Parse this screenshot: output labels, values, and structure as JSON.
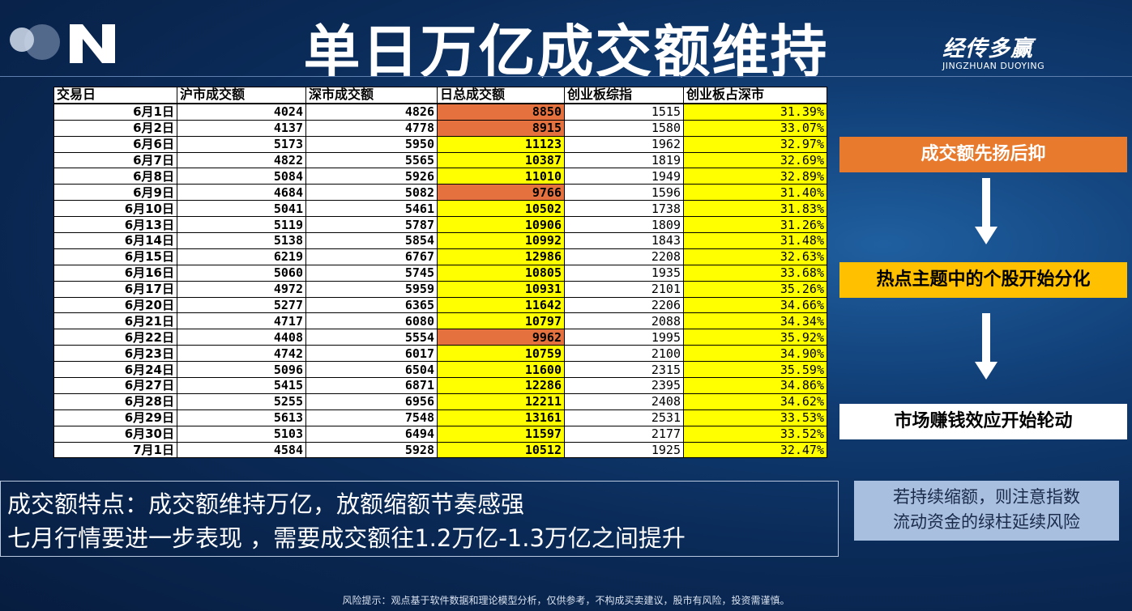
{
  "title": "单日万亿成交额维持",
  "brand": {
    "name": "经传多赢",
    "subtitle": "JINGZHUAN DUOYING"
  },
  "table": {
    "headers": [
      "交易日",
      "沪市成交额",
      "深市成交额",
      "日总成交额",
      "创业板综指",
      "创业板占深市"
    ],
    "rows": [
      {
        "date": "6月1日",
        "sh": "4024",
        "sz": "4826",
        "total": "8850",
        "gem": "1515",
        "pct": "31.39%",
        "hl": "orange"
      },
      {
        "date": "6月2日",
        "sh": "4137",
        "sz": "4778",
        "total": "8915",
        "gem": "1580",
        "pct": "33.07%",
        "hl": "orange"
      },
      {
        "date": "6月6日",
        "sh": "5173",
        "sz": "5950",
        "total": "11123",
        "gem": "1962",
        "pct": "32.97%",
        "hl": "yellow"
      },
      {
        "date": "6月7日",
        "sh": "4822",
        "sz": "5565",
        "total": "10387",
        "gem": "1819",
        "pct": "32.69%",
        "hl": "yellow"
      },
      {
        "date": "6月8日",
        "sh": "5084",
        "sz": "5926",
        "total": "11010",
        "gem": "1949",
        "pct": "32.89%",
        "hl": "yellow"
      },
      {
        "date": "6月9日",
        "sh": "4684",
        "sz": "5082",
        "total": "9766",
        "gem": "1596",
        "pct": "31.40%",
        "hl": "orange"
      },
      {
        "date": "6月10日",
        "sh": "5041",
        "sz": "5461",
        "total": "10502",
        "gem": "1738",
        "pct": "31.83%",
        "hl": "yellow"
      },
      {
        "date": "6月13日",
        "sh": "5119",
        "sz": "5787",
        "total": "10906",
        "gem": "1809",
        "pct": "31.26%",
        "hl": "yellow"
      },
      {
        "date": "6月14日",
        "sh": "5138",
        "sz": "5854",
        "total": "10992",
        "gem": "1843",
        "pct": "31.48%",
        "hl": "yellow"
      },
      {
        "date": "6月15日",
        "sh": "6219",
        "sz": "6767",
        "total": "12986",
        "gem": "2208",
        "pct": "32.63%",
        "hl": "yellow"
      },
      {
        "date": "6月16日",
        "sh": "5060",
        "sz": "5745",
        "total": "10805",
        "gem": "1935",
        "pct": "33.68%",
        "hl": "yellow"
      },
      {
        "date": "6月17日",
        "sh": "4972",
        "sz": "5959",
        "total": "10931",
        "gem": "2101",
        "pct": "35.26%",
        "hl": "yellow"
      },
      {
        "date": "6月20日",
        "sh": "5277",
        "sz": "6365",
        "total": "11642",
        "gem": "2206",
        "pct": "34.66%",
        "hl": "yellow"
      },
      {
        "date": "6月21日",
        "sh": "4717",
        "sz": "6080",
        "total": "10797",
        "gem": "2088",
        "pct": "34.34%",
        "hl": "yellow"
      },
      {
        "date": "6月22日",
        "sh": "4408",
        "sz": "5554",
        "total": "9962",
        "gem": "1995",
        "pct": "35.92%",
        "hl": "orange"
      },
      {
        "date": "6月23日",
        "sh": "4742",
        "sz": "6017",
        "total": "10759",
        "gem": "2100",
        "pct": "34.90%",
        "hl": "yellow"
      },
      {
        "date": "6月24日",
        "sh": "5096",
        "sz": "6504",
        "total": "11600",
        "gem": "2315",
        "pct": "35.59%",
        "hl": "yellow"
      },
      {
        "date": "6月27日",
        "sh": "5415",
        "sz": "6871",
        "total": "12286",
        "gem": "2395",
        "pct": "34.86%",
        "hl": "yellow"
      },
      {
        "date": "6月28日",
        "sh": "5255",
        "sz": "6956",
        "total": "12211",
        "gem": "2408",
        "pct": "34.62%",
        "hl": "yellow"
      },
      {
        "date": "6月29日",
        "sh": "5613",
        "sz": "7548",
        "total": "13161",
        "gem": "2531",
        "pct": "33.53%",
        "hl": "yellow"
      },
      {
        "date": "6月30日",
        "sh": "5103",
        "sz": "6494",
        "total": "11597",
        "gem": "2177",
        "pct": "33.52%",
        "hl": "yellow"
      },
      {
        "date": "7月1日",
        "sh": "4584",
        "sz": "5928",
        "total": "10512",
        "gem": "1925",
        "pct": "32.47%",
        "hl": "yellow"
      }
    ]
  },
  "side": {
    "box1": "成交额先扬后抑",
    "box2": "热点主题中的个股开始分化",
    "box3": "市场赚钱效应开始轮动"
  },
  "bottom": {
    "line1": "成交额特点：成交额维持万亿，放额缩额节奏感强",
    "line2": "七月行情要进一步表现 ，需要成交额往1.2万亿-1.3万亿之间提升"
  },
  "note": {
    "line1": "若持续缩额，则注意指数",
    "line2": "流动资金的绿柱延续风险"
  },
  "disclaimer": "风险提示：观点基于软件数据和理论模型分析，仅供参考，不构成买卖建议，股市有风险，投资需谨慎。",
  "colors": {
    "orange": "#e5723e",
    "yellow": "#ffff00",
    "box1_bg": "#e87a2e",
    "box2_bg": "#ffc000",
    "box3_bg": "#ffffff"
  }
}
